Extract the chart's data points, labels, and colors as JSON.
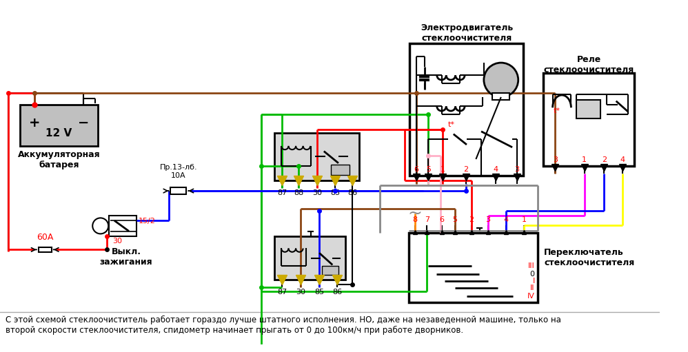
{
  "bg_color": "#ffffff",
  "bottom_text_line1": "С этой схемой стеклоочиститель работает гораздо лучше штатного исполнения. НО, даже на незаведенной машине, только на",
  "bottom_text_line2": "второй скорости стеклоочистителя, спидометр начинает прыгать от 0 до 100км/ч при работе дворников.",
  "label_motor": "Электродвигатель\nстеклоочистителя",
  "label_relay": "Реле\nстеклоочистителя",
  "label_switch": "Переключатель\nстеклоочистителя",
  "label_battery": "Аккумуляторная\nбатарея",
  "label_ignition": "Выкл.\nзажигания",
  "label_fuse13": "Пр.13-лб.\n10А",
  "label_60A": "60А",
  "label_30": "30",
  "label_15_2": "15/2",
  "motor_pins": [
    "6",
    "5",
    "1",
    "2",
    "4",
    "3"
  ],
  "relay_main_pins": [
    "3",
    "1",
    "2",
    "4"
  ],
  "relay1_pins": [
    "87",
    "88",
    "30",
    "85",
    "86"
  ],
  "relay2_pins": [
    "87",
    "30",
    "85",
    "86"
  ],
  "switch_pins": [
    "8",
    "7",
    "6",
    "5",
    "2",
    "3",
    "4",
    "1"
  ],
  "switch_modes": [
    "III",
    "0",
    "I",
    "II",
    "IV"
  ],
  "RED": "#ff0000",
  "GREEN": "#00bb00",
  "BLUE": "#0000ff",
  "BROWN": "#8b4513",
  "PINK": "#ffb0c8",
  "MAGENTA": "#ff00ff",
  "YELLOW": "#ffff00",
  "GRAY": "#888888",
  "ORANGE": "#ff8800",
  "BLACK": "#000000"
}
